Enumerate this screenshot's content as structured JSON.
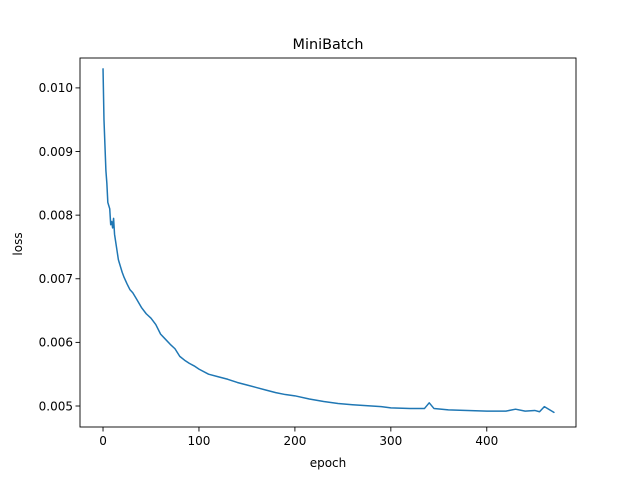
{
  "chart_data": {
    "type": "line",
    "title": "MiniBatch",
    "xlabel": "epoch",
    "ylabel": "loss",
    "xlim": [
      -24,
      493
    ],
    "ylim": [
      0.00467,
      0.01047
    ],
    "xticks": [
      0,
      100,
      200,
      300,
      400
    ],
    "xtick_labels": [
      "0",
      "100",
      "200",
      "300",
      "400"
    ],
    "yticks": [
      0.005,
      0.006,
      0.007,
      0.008,
      0.009,
      0.01
    ],
    "ytick_labels": [
      "0.005",
      "0.006",
      "0.007",
      "0.008",
      "0.009",
      "0.010"
    ],
    "grid": false,
    "legend": "none",
    "series": [
      {
        "color": "#1f77b4",
        "x": [
          0,
          1,
          2,
          3,
          4,
          5,
          6,
          7,
          8,
          9,
          10,
          11,
          12,
          13,
          14,
          15,
          16,
          17,
          18,
          20,
          22,
          25,
          28,
          31,
          35,
          40,
          45,
          50,
          55,
          60,
          65,
          70,
          75,
          80,
          85,
          90,
          95,
          100,
          110,
          120,
          130,
          140,
          150,
          160,
          170,
          180,
          190,
          200,
          215,
          230,
          245,
          260,
          270,
          280,
          290,
          300,
          320,
          335,
          340,
          345,
          360,
          380,
          400,
          420,
          430,
          440,
          450,
          455,
          460,
          470
        ],
        "y": [
          0.0103,
          0.0095,
          0.0091,
          0.0087,
          0.0085,
          0.0082,
          0.00815,
          0.0081,
          0.00785,
          0.0079,
          0.0078,
          0.00795,
          0.0077,
          0.0076,
          0.0075,
          0.0074,
          0.0073,
          0.00725,
          0.0072,
          0.0071,
          0.00702,
          0.00692,
          0.00683,
          0.00678,
          0.00668,
          0.00655,
          0.00645,
          0.00638,
          0.00628,
          0.00613,
          0.00605,
          0.00597,
          0.0059,
          0.00578,
          0.00572,
          0.00567,
          0.00563,
          0.00558,
          0.0055,
          0.00546,
          0.00542,
          0.00537,
          0.00533,
          0.00529,
          0.00525,
          0.00521,
          0.00518,
          0.00516,
          0.00511,
          0.00507,
          0.00504,
          0.00502,
          0.00501,
          0.005,
          0.00499,
          0.00497,
          0.00496,
          0.00496,
          0.00505,
          0.00496,
          0.00494,
          0.00493,
          0.00492,
          0.00492,
          0.00495,
          0.00492,
          0.00493,
          0.00491,
          0.00499,
          0.0049
        ]
      }
    ]
  }
}
